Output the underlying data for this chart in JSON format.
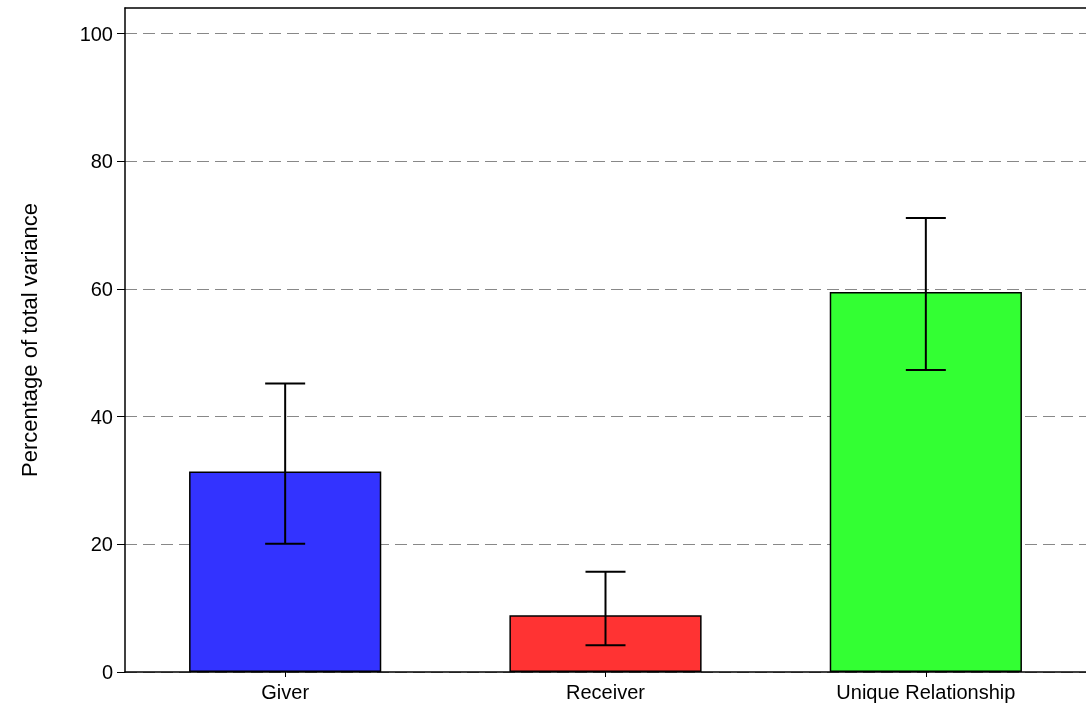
{
  "chart_data": {
    "type": "bar",
    "ylabel": "Percentage of total variance",
    "categories": [
      "Giver",
      "Receiver",
      "Unique Relationship"
    ],
    "values": [
      31.4,
      8.9,
      59.5
    ],
    "colors": [
      "#3333ff",
      "#ff3333",
      "#33ff33"
    ],
    "errors": [
      [
        20.1,
        45.2
      ],
      [
        4.2,
        15.7
      ],
      [
        47.3,
        71.1
      ]
    ],
    "ylim": [
      0,
      104
    ],
    "yticks": [
      0,
      20,
      40,
      60,
      80,
      100
    ],
    "grid": "y"
  }
}
